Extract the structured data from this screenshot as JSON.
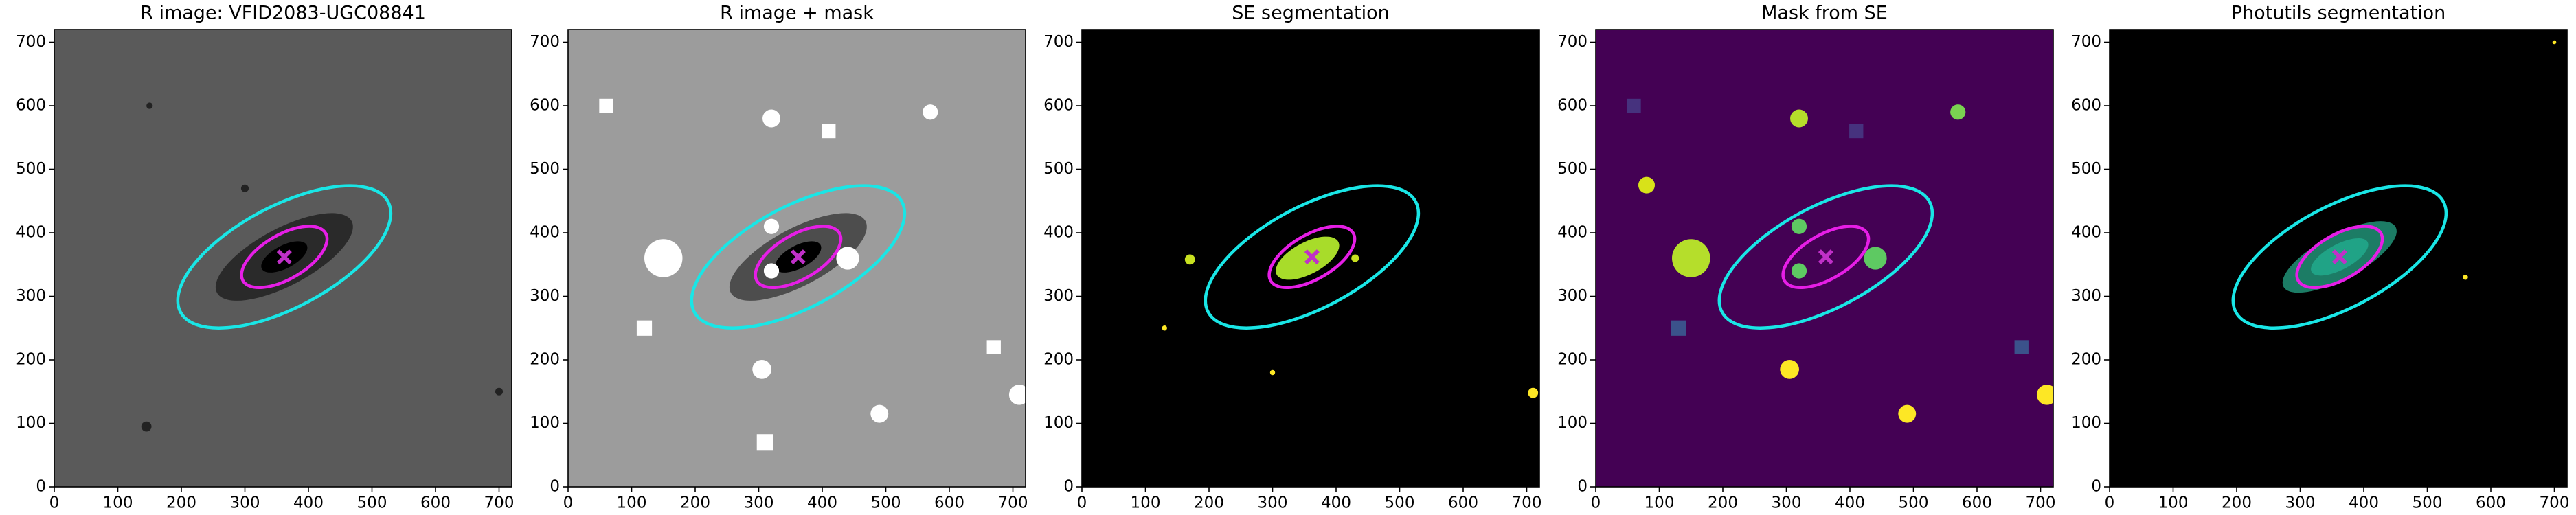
{
  "chart_data": [
    {
      "type": "image",
      "title": "R image: VFID2083-UGC08841",
      "background": "#5a5a5a",
      "xlim": [
        0,
        720
      ],
      "ylim": [
        0,
        720
      ],
      "xticks": [
        0,
        100,
        200,
        300,
        400,
        500,
        600,
        700
      ],
      "yticks": [
        0,
        100,
        200,
        300,
        400,
        500,
        600,
        700
      ],
      "ellipses": [
        {
          "center": [
            362,
            362
          ],
          "a": 185,
          "b": 80,
          "angle": 28,
          "color": "#19e6e6"
        },
        {
          "center": [
            362,
            362
          ],
          "a": 75,
          "b": 35,
          "angle": 30,
          "color": "#e61ee6"
        }
      ],
      "marker": {
        "x": 362,
        "y": 362,
        "color": "#c030c8"
      }
    },
    {
      "type": "image",
      "title": "R image + mask",
      "background": "#9c9c9c",
      "xlim": [
        0,
        720
      ],
      "ylim": [
        0,
        720
      ],
      "xticks": [
        0,
        100,
        200,
        300,
        400,
        500,
        600,
        700
      ],
      "yticks": [
        0,
        100,
        200,
        300,
        400,
        500,
        600,
        700
      ],
      "ellipses": [
        {
          "center": [
            362,
            362
          ],
          "a": 185,
          "b": 80,
          "angle": 28,
          "color": "#19e6e6"
        },
        {
          "center": [
            362,
            362
          ],
          "a": 75,
          "b": 35,
          "angle": 30,
          "color": "#e61ee6"
        }
      ],
      "marker": {
        "x": 362,
        "y": 362,
        "color": "#c030c8"
      }
    },
    {
      "type": "image",
      "title": "SE segmentation",
      "background": "#000000",
      "xlim": [
        0,
        720
      ],
      "ylim": [
        0,
        720
      ],
      "xticks": [
        0,
        100,
        200,
        300,
        400,
        500,
        600,
        700
      ],
      "yticks": [
        0,
        100,
        200,
        300,
        400,
        500,
        600,
        700
      ],
      "ellipses": [
        {
          "center": [
            362,
            362
          ],
          "a": 185,
          "b": 80,
          "angle": 28,
          "color": "#19e6e6"
        },
        {
          "center": [
            362,
            362
          ],
          "a": 75,
          "b": 35,
          "angle": 30,
          "color": "#e61ee6"
        }
      ],
      "marker": {
        "x": 362,
        "y": 362,
        "color": "#c030c8"
      }
    },
    {
      "type": "image",
      "title": "Mask from SE",
      "background": "#440154",
      "xlim": [
        0,
        720
      ],
      "ylim": [
        0,
        720
      ],
      "xticks": [
        0,
        100,
        200,
        300,
        400,
        500,
        600,
        700
      ],
      "yticks": [
        0,
        100,
        200,
        300,
        400,
        500,
        600,
        700
      ],
      "ellipses": [
        {
          "center": [
            362,
            362
          ],
          "a": 185,
          "b": 80,
          "angle": 28,
          "color": "#19e6e6"
        },
        {
          "center": [
            362,
            362
          ],
          "a": 75,
          "b": 35,
          "angle": 30,
          "color": "#e61ee6"
        }
      ],
      "marker": {
        "x": 362,
        "y": 362,
        "color": "#c030c8"
      }
    },
    {
      "type": "image",
      "title": "Photutils segmentation",
      "background": "#000000",
      "xlim": [
        0,
        720
      ],
      "ylim": [
        0,
        720
      ],
      "xticks": [
        0,
        100,
        200,
        300,
        400,
        500,
        600,
        700
      ],
      "yticks": [
        0,
        100,
        200,
        300,
        400,
        500,
        600,
        700
      ],
      "ellipses": [
        {
          "center": [
            362,
            362
          ],
          "a": 185,
          "b": 80,
          "angle": 28,
          "color": "#19e6e6"
        },
        {
          "center": [
            362,
            362
          ],
          "a": 75,
          "b": 35,
          "angle": 30,
          "color": "#e61ee6"
        }
      ],
      "marker": {
        "x": 362,
        "y": 362,
        "color": "#c030c8"
      }
    }
  ]
}
